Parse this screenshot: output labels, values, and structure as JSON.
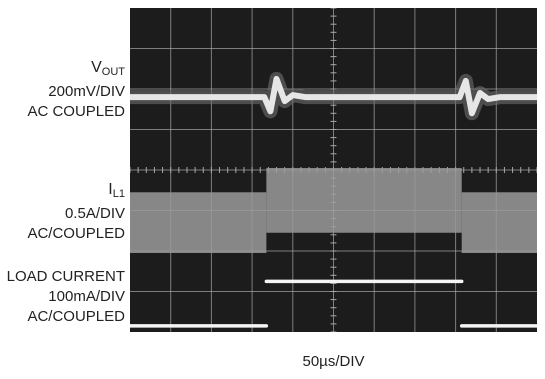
{
  "chart_data": {
    "type": "line",
    "title": "",
    "xlabel": "50µs/DIV",
    "divisions": {
      "x": 10,
      "y": 8
    },
    "grid": true,
    "x_unit": "div",
    "traces": [
      {
        "id": "vout",
        "symbol": "V",
        "subscript": "OUT",
        "scale_label": "200mV/DIV",
        "coupling_label": "AC COUPLED",
        "color": "#e6e6e6",
        "points": [
          [
            0,
            2.2
          ],
          [
            3.3,
            2.2
          ],
          [
            3.45,
            2.55
          ],
          [
            3.6,
            1.75
          ],
          [
            3.8,
            2.3
          ],
          [
            4.0,
            2.15
          ],
          [
            4.3,
            2.2
          ],
          [
            8.1,
            2.2
          ],
          [
            8.25,
            1.8
          ],
          [
            8.4,
            2.6
          ],
          [
            8.6,
            2.1
          ],
          [
            8.8,
            2.25
          ],
          [
            9.1,
            2.2
          ],
          [
            10,
            2.2
          ]
        ]
      },
      {
        "id": "il1",
        "symbol": "I",
        "subscript": "L1",
        "scale_label": "0.5A/DIV",
        "coupling_label": "AC/COUPLED",
        "color": "#9a9a9a",
        "envelope": [
          {
            "x": [
              0,
              3.35
            ],
            "top": 4.55,
            "bottom": 6.05
          },
          {
            "x": [
              3.35,
              8.15
            ],
            "top": 3.95,
            "bottom": 5.55
          },
          {
            "x": [
              8.15,
              10
            ],
            "top": 4.55,
            "bottom": 6.05
          }
        ]
      },
      {
        "id": "load",
        "symbol": "",
        "subscript": "",
        "name": "LOAD CURRENT",
        "scale_label": "100mA/DIV",
        "coupling_label": "AC/COUPLED",
        "color": "#f4f4f4",
        "points": [
          [
            0,
            7.85
          ],
          [
            3.35,
            7.85
          ],
          [
            3.35,
            6.75
          ],
          [
            8.15,
            6.75
          ],
          [
            8.15,
            7.85
          ],
          [
            10,
            7.85
          ]
        ]
      }
    ],
    "colors": {
      "screen": "#1c1c1c",
      "grid": "#a8a8a8",
      "glow": "#6e6e6e"
    }
  }
}
